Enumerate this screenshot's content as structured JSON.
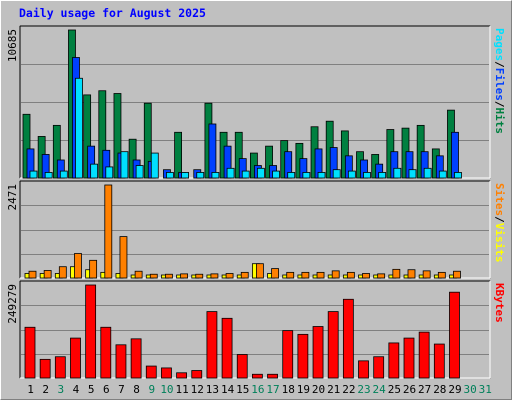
{
  "colors": {
    "background": "#c0c0c0",
    "panel": "#c0c0c0",
    "grid": "#808080",
    "hits": "#008040",
    "files": "#0040ff",
    "pages": "#00e0ff",
    "visits": "#ffff00",
    "sites": "#ff8000",
    "kbytes": "#ff0000",
    "weekday_label": "#000000",
    "weekend_label": "#00805a",
    "title": "#0000ff"
  },
  "chart_data": [
    {
      "type": "bar",
      "title": "Daily usage for August 2025",
      "panel": "top",
      "ymax_label": "10685",
      "ylim": [
        0,
        10685
      ],
      "legend": [
        {
          "text": "Pages",
          "color": "#00e0ff"
        },
        {
          "text": "/",
          "color": "#000000"
        },
        {
          "text": "Files",
          "color": "#0040ff"
        },
        {
          "text": "/",
          "color": "#000000"
        },
        {
          "text": "Hits",
          "color": "#008040"
        }
      ],
      "categories": [
        "1",
        "2",
        "3",
        "4",
        "5",
        "6",
        "7",
        "8",
        "9",
        "10",
        "11",
        "12",
        "13",
        "14",
        "15",
        "16",
        "17",
        "18",
        "19",
        "20",
        "21",
        "22",
        "23",
        "24",
        "25",
        "26",
        "27",
        "28",
        "29",
        "30",
        "31"
      ],
      "weekend": [
        false,
        false,
        true,
        false,
        false,
        false,
        false,
        false,
        true,
        true,
        false,
        false,
        false,
        false,
        false,
        true,
        true,
        false,
        false,
        false,
        false,
        false,
        true,
        true,
        false,
        false,
        false,
        false,
        false,
        true,
        true
      ],
      "series": [
        {
          "name": "Hits",
          "color": "#008040",
          "values": [
            4600,
            3000,
            3800,
            10685,
            6000,
            6300,
            6100,
            2800,
            5400,
            0,
            3300,
            0,
            5400,
            3300,
            3300,
            1800,
            2300,
            2700,
            2500,
            3700,
            4100,
            3400,
            1900,
            1700,
            3500,
            3600,
            3800,
            2100,
            4900,
            0,
            0
          ]
        },
        {
          "name": "Files",
          "color": "#0040ff",
          "values": [
            2100,
            1700,
            1300,
            8700,
            2300,
            2000,
            1800,
            1300,
            1200,
            600,
            400,
            600,
            3900,
            2300,
            1400,
            900,
            900,
            1900,
            1400,
            2100,
            2200,
            1600,
            1300,
            1000,
            1900,
            1900,
            1900,
            1600,
            3300,
            0,
            0
          ]
        },
        {
          "name": "Pages",
          "color": "#00e0ff",
          "values": [
            500,
            400,
            500,
            7200,
            1000,
            800,
            1900,
            900,
            1800,
            400,
            400,
            400,
            400,
            700,
            500,
            700,
            500,
            400,
            400,
            400,
            600,
            500,
            400,
            400,
            700,
            600,
            700,
            500,
            400,
            0,
            0
          ]
        }
      ]
    },
    {
      "type": "bar",
      "panel": "middle",
      "ymax_label": "2471",
      "ylim": [
        0,
        2471
      ],
      "legend": [
        {
          "text": "Sites",
          "color": "#ff8000"
        },
        {
          "text": "/",
          "color": "#000000"
        },
        {
          "text": "Visits",
          "color": "#ffff00"
        }
      ],
      "categories": [
        "1",
        "2",
        "3",
        "4",
        "5",
        "6",
        "7",
        "8",
        "9",
        "10",
        "11",
        "12",
        "13",
        "14",
        "15",
        "16",
        "17",
        "18",
        "19",
        "20",
        "21",
        "22",
        "23",
        "24",
        "25",
        "26",
        "27",
        "28",
        "29",
        "30",
        "31"
      ],
      "series": [
        {
          "name": "Visits",
          "color": "#ffff00",
          "values": [
            120,
            120,
            120,
            300,
            220,
            150,
            120,
            80,
            80,
            80,
            80,
            80,
            80,
            80,
            80,
            380,
            120,
            80,
            80,
            80,
            80,
            80,
            80,
            80,
            80,
            80,
            80,
            80,
            80,
            0,
            0
          ]
        },
        {
          "name": "Sites",
          "color": "#ff8000",
          "values": [
            180,
            200,
            300,
            650,
            470,
            2471,
            1100,
            180,
            100,
            100,
            110,
            100,
            110,
            120,
            150,
            380,
            250,
            150,
            150,
            150,
            190,
            150,
            120,
            110,
            230,
            220,
            190,
            150,
            180,
            0,
            0
          ]
        }
      ]
    },
    {
      "type": "bar",
      "panel": "bottom",
      "ymax_label": "249279",
      "ylim": [
        0,
        249279
      ],
      "legend": [
        {
          "text": "KBytes",
          "color": "#ff0000"
        }
      ],
      "categories": [
        "1",
        "2",
        "3",
        "4",
        "5",
        "6",
        "7",
        "8",
        "9",
        "10",
        "11",
        "12",
        "13",
        "14",
        "15",
        "16",
        "17",
        "18",
        "19",
        "20",
        "21",
        "22",
        "23",
        "24",
        "25",
        "26",
        "27",
        "28",
        "29",
        "30",
        "31"
      ],
      "series": [
        {
          "name": "KBytes",
          "color": "#ff0000",
          "values": [
            136000,
            50000,
            57000,
            107000,
            249279,
            136000,
            89000,
            105000,
            32000,
            27000,
            14000,
            20000,
            178000,
            160000,
            63000,
            10000,
            10000,
            127000,
            117000,
            138000,
            178000,
            211000,
            46000,
            57000,
            94000,
            107000,
            123000,
            91000,
            230000,
            0,
            0
          ]
        }
      ]
    }
  ]
}
